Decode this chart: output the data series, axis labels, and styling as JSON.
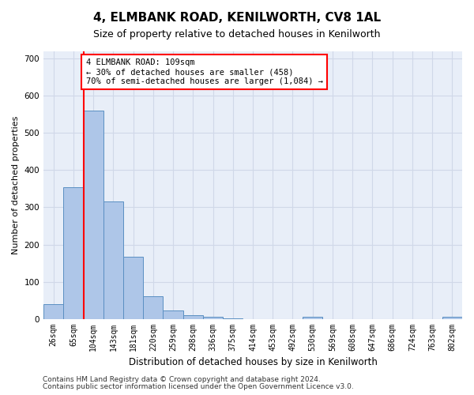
{
  "title": "4, ELMBANK ROAD, KENILWORTH, CV8 1AL",
  "subtitle": "Size of property relative to detached houses in Kenilworth",
  "xlabel": "Distribution of detached houses by size in Kenilworth",
  "ylabel": "Number of detached properties",
  "bar_labels": [
    "26sqm",
    "65sqm",
    "104sqm",
    "143sqm",
    "181sqm",
    "220sqm",
    "259sqm",
    "298sqm",
    "336sqm",
    "375sqm",
    "414sqm",
    "453sqm",
    "492sqm",
    "530sqm",
    "569sqm",
    "608sqm",
    "647sqm",
    "686sqm",
    "724sqm",
    "763sqm",
    "802sqm"
  ],
  "bar_values": [
    40,
    355,
    560,
    315,
    168,
    60,
    22,
    10,
    5,
    2,
    0,
    0,
    0,
    5,
    0,
    0,
    0,
    0,
    0,
    0,
    5
  ],
  "bar_color": "#aec6e8",
  "bar_edge_color": "#5a8fc2",
  "vline_color": "red",
  "annotation_text": "4 ELMBANK ROAD: 109sqm\n← 30% of detached houses are smaller (458)\n70% of semi-detached houses are larger (1,084) →",
  "annotation_box_color": "white",
  "annotation_box_edge_color": "red",
  "ylim": [
    0,
    720
  ],
  "yticks": [
    0,
    100,
    200,
    300,
    400,
    500,
    600,
    700
  ],
  "grid_color": "#d0d8e8",
  "bg_color": "#e8eef8",
  "footer1": "Contains HM Land Registry data © Crown copyright and database right 2024.",
  "footer2": "Contains public sector information licensed under the Open Government Licence v3.0.",
  "title_fontsize": 11,
  "subtitle_fontsize": 9,
  "annotation_fontsize": 7.5,
  "ylabel_fontsize": 8,
  "xlabel_fontsize": 8.5,
  "tick_fontsize": 7,
  "ytick_fontsize": 7.5,
  "footer_fontsize": 6.5
}
